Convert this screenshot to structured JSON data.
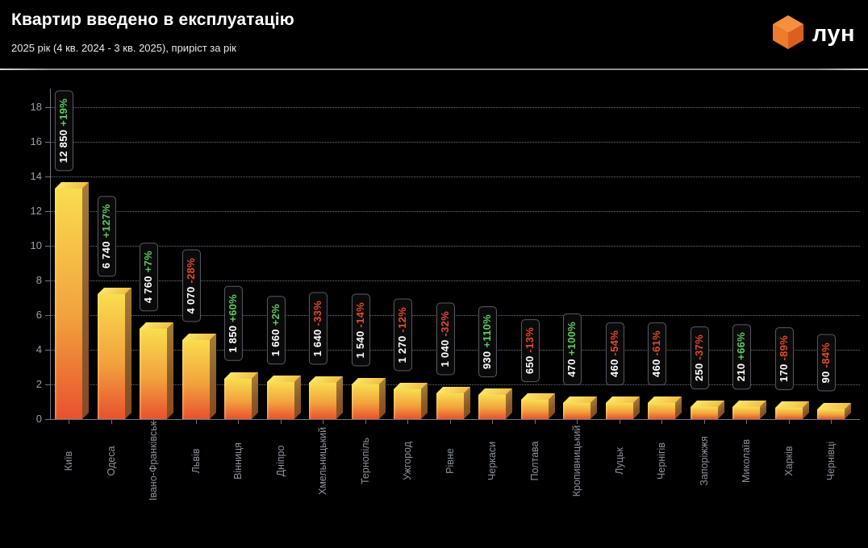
{
  "header": {
    "title": "Квартир введено в експлуатацію",
    "subtitle": "2025 рік (4 кв. 2024 - 3 кв. 2025), приріст за рік",
    "brand": "лун"
  },
  "chart_data": {
    "type": "bar",
    "title": "Квартир введено в експлуатацію",
    "subtitle": "2025 рік (4 кв. 2024 - 3 кв. 2025), приріст за рік",
    "y_scale": "thousands of apartments",
    "ylim": [
      0,
      18
    ],
    "yticks": [
      0,
      2,
      4,
      6,
      8,
      10,
      12,
      14,
      16,
      18
    ],
    "grid": "dotted-horizontal",
    "legend": "none",
    "categories": [
      "Київ",
      "Одеса",
      "Івано-Франківськ",
      "Львів",
      "Вінниця",
      "Дніпро",
      "Хмельницький",
      "Тернопіль",
      "Ужгород",
      "Рівне",
      "Черкаси",
      "Полтава",
      "Кропивницький",
      "Луцьк",
      "Чернігів",
      "Запоріжжя",
      "Миколаїв",
      "Харків",
      "Чернівці"
    ],
    "bars": [
      {
        "city": "Київ",
        "value": 12850,
        "value_label": "12 850",
        "change": "+19%",
        "trend": "up"
      },
      {
        "city": "Одеса",
        "value": 6740,
        "value_label": "6 740",
        "change": "+127%",
        "trend": "up"
      },
      {
        "city": "Івано-Франківськ",
        "value": 4760,
        "value_label": "4 760",
        "change": "+7%",
        "trend": "up"
      },
      {
        "city": "Львів",
        "value": 4070,
        "value_label": "4 070",
        "change": "-28%",
        "trend": "down"
      },
      {
        "city": "Вінниця",
        "value": 1850,
        "value_label": "1 850",
        "change": "+60%",
        "trend": "up"
      },
      {
        "city": "Дніпро",
        "value": 1660,
        "value_label": "1 660",
        "change": "+2%",
        "trend": "up"
      },
      {
        "city": "Хмельницький",
        "value": 1640,
        "value_label": "1 640",
        "change": "-33%",
        "trend": "down"
      },
      {
        "city": "Тернопіль",
        "value": 1540,
        "value_label": "1 540",
        "change": "-14%",
        "trend": "down"
      },
      {
        "city": "Ужгород",
        "value": 1270,
        "value_label": "1 270",
        "change": "-12%",
        "trend": "down"
      },
      {
        "city": "Рівне",
        "value": 1040,
        "value_label": "1 040",
        "change": "-32%",
        "trend": "down"
      },
      {
        "city": "Черкаси",
        "value": 930,
        "value_label": "930",
        "change": "+110%",
        "trend": "up"
      },
      {
        "city": "Полтава",
        "value": 650,
        "value_label": "650",
        "change": "-13%",
        "trend": "down"
      },
      {
        "city": "Кропивницький",
        "value": 470,
        "value_label": "470",
        "change": "+100%",
        "trend": "up"
      },
      {
        "city": "Луцьк",
        "value": 460,
        "value_label": "460",
        "change": "-54%",
        "trend": "down"
      },
      {
        "city": "Чернігів",
        "value": 460,
        "value_label": "460",
        "change": "-61%",
        "trend": "down"
      },
      {
        "city": "Запоріжжя",
        "value": 250,
        "value_label": "250",
        "change": "-37%",
        "trend": "down"
      },
      {
        "city": "Миколаїв",
        "value": 210,
        "value_label": "210",
        "change": "+66%",
        "trend": "up"
      },
      {
        "city": "Харків",
        "value": 170,
        "value_label": "170",
        "change": "-89%",
        "trend": "down"
      },
      {
        "city": "Чернівці",
        "value": 90,
        "value_label": "90",
        "change": "-84%",
        "trend": "down"
      }
    ],
    "colors": {
      "background": "#000000",
      "bar_gradient_top": "#f9dd4e",
      "bar_gradient_bottom": "#e8512f",
      "bar_side": "#8a5a26",
      "positive_change": "#5ecb63",
      "negative_change": "#e2492e",
      "axis_text": "#9ba0a8",
      "brand_orange": "#f07b2e"
    }
  }
}
